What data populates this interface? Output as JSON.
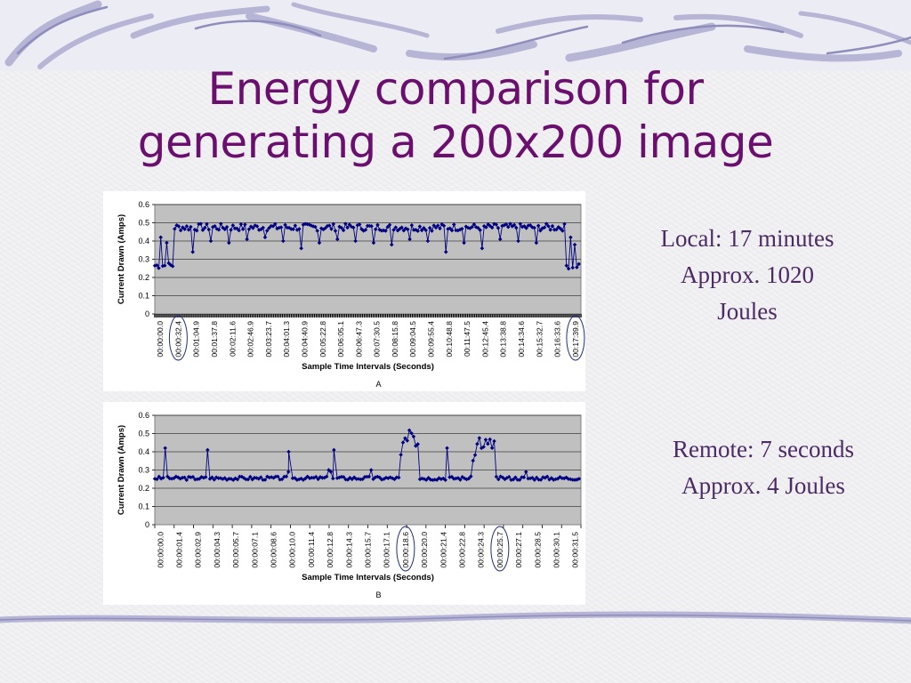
{
  "slide": {
    "title_line1": "Energy comparison for",
    "title_line2": "generating a 200x200 image",
    "local_note": {
      "line1": "Local: 17 minutes",
      "line2": "Approx. 1020",
      "line3": "Joules"
    },
    "remote_note": {
      "line1": "Remote: 7 seconds",
      "line2": "Approx. 4 Joules"
    },
    "colors": {
      "title": "#6b0f6e",
      "note": "#4c2a66",
      "plot_bg": "#c0c0c0",
      "series": "#000080",
      "band": "#b7b5d5"
    }
  },
  "chart_data": [
    {
      "type": "line",
      "caption": "A",
      "ylabel": "Current Drawn (Amps)",
      "xlabel": "Sample Time Intervals (Seconds)",
      "ylim": [
        0,
        0.6
      ],
      "yticks": [
        "0",
        "0.1",
        "0.2",
        "0.3",
        "0.4",
        "0.5",
        "0.6"
      ],
      "grid": true,
      "legend": "none",
      "x_tick_labels": [
        "00:00:00.0",
        "00:00:32.4",
        "00:01:04.9",
        "00:01:37.8",
        "00:02:11.6",
        "00:02:46.9",
        "00:03:23.7",
        "00:04:01.3",
        "00:04:40.9",
        "00:05:22.8",
        "00:06:05.1",
        "00:06:47.3",
        "00:07:30.5",
        "00:08:15.8",
        "00:09:04.5",
        "00:09:55.4",
        "00:10:48.8",
        "00:11:47.5",
        "00:12:45.4",
        "00:13:38.8",
        "00:14:34.6",
        "00:15:32.7",
        "00:16:33.6",
        "00:17:39.9"
      ],
      "circled_tick_indices": [
        1,
        23
      ],
      "series": [
        {
          "segments": [
            {
              "x_start": 0.0,
              "x_end": 1.1,
              "base": 0.265,
              "spread": 0.018,
              "spike_values": [
                0.42,
                0.39
              ]
            },
            {
              "x_start": 1.1,
              "x_end": 22.8,
              "base": 0.475,
              "spread": 0.02,
              "spike_values": [
                0.34,
                0.4,
                0.39,
                0.41,
                0.42,
                0.4,
                0.36,
                0.39,
                0.41,
                0.4,
                0.39,
                0.38,
                0.41,
                0.4,
                0.34,
                0.39,
                0.36,
                0.41,
                0.4,
                0.39
              ]
            },
            {
              "x_start": 22.8,
              "x_end": 23.6,
              "base": 0.265,
              "spread": 0.018,
              "spike_values": [
                0.42,
                0.38
              ]
            }
          ]
        }
      ]
    },
    {
      "type": "line",
      "caption": "B",
      "ylabel": "Current Drawn (Amps)",
      "xlabel": "Sample Time Intervals (Seconds)",
      "ylim": [
        0,
        0.6
      ],
      "yticks": [
        "0",
        "0.1",
        "0.2",
        "0.3",
        "0.4",
        "0.5",
        "0.6"
      ],
      "grid": true,
      "legend": "none",
      "x_tick_labels": [
        "00:00:00.0",
        "00:00:01.4",
        "00:00:02.9",
        "00:00:04.3",
        "00:00:05.7",
        "00:00:07.1",
        "00:00:08.6",
        "00:00:10.0",
        "00:00:11.4",
        "00:00:12.8",
        "00:00:14.3",
        "00:00:15.7",
        "00:00:17.1",
        "00:00:18.6",
        "00:00:20.0",
        "00:00:21.4",
        "00:00:22.8",
        "00:00:24.3",
        "00:00:25.7",
        "00:00:27.1",
        "00:00:28.5",
        "00:00:30.1",
        "00:00:31.5"
      ],
      "circled_tick_indices": [
        13,
        18
      ],
      "series": [
        {
          "baseline": 0.255,
          "spikes": [
            {
              "x": 0.55,
              "y": 0.42
            },
            {
              "x": 2.8,
              "y": 0.41
            },
            {
              "x": 7.1,
              "y": 0.4
            },
            {
              "x": 9.5,
              "y": 0.41
            },
            {
              "x": 15.5,
              "y": 0.42
            }
          ],
          "bursts": [
            {
              "x_start": 13.0,
              "x_end": 14.05,
              "peaks": [
                0.38,
                0.45,
                0.47,
                0.52,
                0.51,
                0.49,
                0.44,
                0.45
              ]
            },
            {
              "x_start": 16.8,
              "x_end": 18.1,
              "peaks": [
                0.35,
                0.39,
                0.44,
                0.48,
                0.42,
                0.47,
                0.44,
                0.46,
                0.43,
                0.45
              ]
            }
          ]
        }
      ]
    }
  ]
}
